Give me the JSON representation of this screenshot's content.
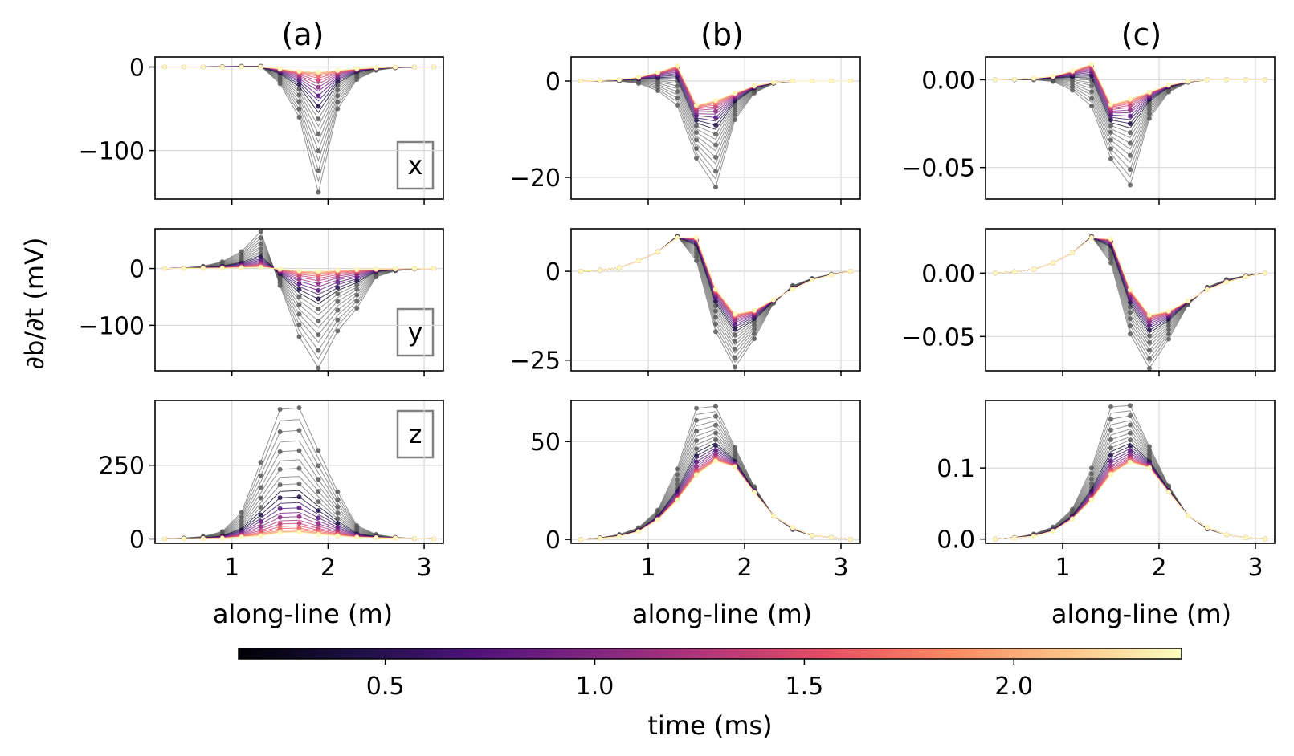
{
  "figure": {
    "ylabel": "∂b/∂t (mV)",
    "column_titles": [
      "(a)",
      "(b)",
      "(c)"
    ],
    "xlabel": "along-line (m)"
  },
  "colorbar": {
    "label": "time (ms)",
    "range": [
      0.15,
      2.4
    ],
    "ticks": [
      0.5,
      1.0,
      1.5,
      2.0
    ],
    "tick_labels": [
      "0.5",
      "1.0",
      "1.5",
      "2.0"
    ],
    "colormap": "magma",
    "colors": [
      "#000004",
      "#1c1044",
      "#4f127b",
      "#812581",
      "#b5367a",
      "#e55064",
      "#fb8761",
      "#fec287",
      "#fcfdbf"
    ]
  },
  "chart_data": [
    {
      "type": "line",
      "panel": "a-x",
      "component": "x",
      "x_range": [
        0.3,
        3.1
      ],
      "ylim": [
        -158,
        12
      ],
      "yticks": [
        0,
        -100
      ],
      "ytick_labels": [
        "0",
        "−100"
      ],
      "xticks": [
        1,
        2,
        3
      ],
      "xtick_labels": [
        "1",
        "2",
        "3"
      ],
      "early_peak": [
        [
          0.3,
          0
        ],
        [
          0.5,
          0
        ],
        [
          0.7,
          0
        ],
        [
          0.9,
          0.5
        ],
        [
          1.1,
          1
        ],
        [
          1.3,
          1
        ],
        [
          1.5,
          -20
        ],
        [
          1.7,
          -60
        ],
        [
          1.9,
          -150
        ],
        [
          2.1,
          -50
        ],
        [
          2.3,
          -15
        ],
        [
          2.5,
          -4
        ],
        [
          2.7,
          -1
        ],
        [
          2.9,
          0
        ],
        [
          3.1,
          0
        ]
      ],
      "late_peak": [
        [
          0.3,
          0
        ],
        [
          0.7,
          0
        ],
        [
          1.3,
          0
        ],
        [
          1.5,
          -2
        ],
        [
          1.7,
          -5
        ],
        [
          1.9,
          -6
        ],
        [
          2.1,
          -4
        ],
        [
          2.3,
          -2
        ],
        [
          2.7,
          0
        ],
        [
          3.1,
          0
        ]
      ]
    },
    {
      "type": "line",
      "panel": "b-x",
      "component": "x",
      "x_range": [
        0.3,
        3.1
      ],
      "ylim": [
        -24.5,
        5
      ],
      "yticks": [
        0,
        -20
      ],
      "ytick_labels": [
        "0",
        "−20"
      ],
      "xticks": [
        1,
        2,
        3
      ],
      "xtick_labels": [
        "1",
        "2",
        "3"
      ],
      "early_peak": [
        [
          0.3,
          0
        ],
        [
          0.5,
          0
        ],
        [
          0.7,
          0
        ],
        [
          0.9,
          -0.5
        ],
        [
          1.1,
          -2
        ],
        [
          1.3,
          -5
        ],
        [
          1.5,
          -16
        ],
        [
          1.6,
          -23
        ],
        [
          1.7,
          -22
        ],
        [
          1.9,
          -8
        ],
        [
          2.1,
          -2.5
        ],
        [
          2.3,
          -0.5
        ],
        [
          2.5,
          0
        ],
        [
          2.7,
          0
        ],
        [
          2.9,
          0
        ],
        [
          3.1,
          0
        ]
      ],
      "late_peak": [
        [
          0.3,
          0
        ],
        [
          0.5,
          0.1
        ],
        [
          0.7,
          0.3
        ],
        [
          0.9,
          0.8
        ],
        [
          1.1,
          1.8
        ],
        [
          1.3,
          3.2
        ],
        [
          1.5,
          -5
        ],
        [
          1.7,
          -4
        ],
        [
          1.9,
          -2.5
        ],
        [
          2.1,
          -1
        ],
        [
          2.3,
          -0.3
        ],
        [
          2.5,
          0
        ],
        [
          2.7,
          0
        ],
        [
          2.9,
          0
        ],
        [
          3.1,
          0
        ]
      ]
    },
    {
      "type": "line",
      "panel": "c-x",
      "component": "x",
      "x_range": [
        0.3,
        3.1
      ],
      "ylim": [
        -0.068,
        0.013
      ],
      "yticks": [
        0,
        -0.05
      ],
      "ytick_labels": [
        "0.00",
        "−0.05"
      ],
      "xticks": [
        1,
        2,
        3
      ],
      "xtick_labels": [
        "1",
        "2",
        "3"
      ],
      "early_peak": [
        [
          0.3,
          0
        ],
        [
          0.5,
          0
        ],
        [
          0.7,
          0
        ],
        [
          0.9,
          -0.001
        ],
        [
          1.1,
          -0.006
        ],
        [
          1.3,
          -0.015
        ],
        [
          1.5,
          -0.045
        ],
        [
          1.6,
          -0.063
        ],
        [
          1.7,
          -0.06
        ],
        [
          1.9,
          -0.022
        ],
        [
          2.1,
          -0.007
        ],
        [
          2.3,
          -0.0015
        ],
        [
          2.5,
          0
        ],
        [
          2.7,
          0
        ],
        [
          2.9,
          0
        ],
        [
          3.1,
          0
        ]
      ],
      "late_peak": [
        [
          0.3,
          0
        ],
        [
          0.5,
          0.0002
        ],
        [
          0.7,
          0.0008
        ],
        [
          0.9,
          0.002
        ],
        [
          1.1,
          0.005
        ],
        [
          1.3,
          0.009
        ],
        [
          1.5,
          -0.014
        ],
        [
          1.7,
          -0.011
        ],
        [
          1.9,
          -0.007
        ],
        [
          2.1,
          -0.003
        ],
        [
          2.3,
          -0.001
        ],
        [
          2.5,
          0
        ],
        [
          2.7,
          0
        ],
        [
          2.9,
          0
        ],
        [
          3.1,
          0
        ]
      ]
    },
    {
      "type": "line",
      "panel": "a-y",
      "component": "y",
      "x_range": [
        0.3,
        3.1
      ],
      "ylim": [
        -180,
        70
      ],
      "yticks": [
        0,
        -100
      ],
      "ytick_labels": [
        "0",
        "−100"
      ],
      "xticks": [
        1,
        2,
        3
      ],
      "xtick_labels": [
        "1",
        "2",
        "3"
      ],
      "early_peak": [
        [
          0.3,
          0
        ],
        [
          0.5,
          1
        ],
        [
          0.7,
          4
        ],
        [
          0.9,
          12
        ],
        [
          1.1,
          30
        ],
        [
          1.3,
          65
        ],
        [
          1.5,
          -30
        ],
        [
          1.7,
          -120
        ],
        [
          1.9,
          -175
        ],
        [
          2.1,
          -110
        ],
        [
          2.3,
          -70
        ],
        [
          2.5,
          -15
        ],
        [
          2.7,
          -4
        ],
        [
          2.9,
          -1
        ],
        [
          3.1,
          0
        ]
      ],
      "late_peak": [
        [
          0.3,
          0
        ],
        [
          0.9,
          0.5
        ],
        [
          1.3,
          2
        ],
        [
          1.5,
          -1
        ],
        [
          1.7,
          -4
        ],
        [
          1.9,
          -5
        ],
        [
          2.1,
          -3
        ],
        [
          2.5,
          -1
        ],
        [
          3.1,
          0
        ]
      ]
    },
    {
      "type": "line",
      "panel": "b-y",
      "component": "y",
      "x_range": [
        0.3,
        3.1
      ],
      "ylim": [
        -28,
        12
      ],
      "yticks": [
        0,
        -25
      ],
      "ytick_labels": [
        "0",
        "−25"
      ],
      "xticks": [
        1,
        2,
        3
      ],
      "xtick_labels": [
        "1",
        "2",
        "3"
      ],
      "early_peak": [
        [
          0.3,
          0
        ],
        [
          0.5,
          0.3
        ],
        [
          0.7,
          1
        ],
        [
          0.9,
          3
        ],
        [
          1.1,
          5.5
        ],
        [
          1.3,
          10
        ],
        [
          1.5,
          3
        ],
        [
          1.7,
          -17
        ],
        [
          1.9,
          -27
        ],
        [
          2.1,
          -19
        ],
        [
          2.3,
          -9
        ],
        [
          2.5,
          -4
        ],
        [
          2.7,
          -2
        ],
        [
          2.9,
          -0.8
        ],
        [
          3.1,
          0
        ]
      ],
      "late_peak": [
        [
          0.3,
          0
        ],
        [
          0.5,
          0.3
        ],
        [
          0.7,
          1
        ],
        [
          0.9,
          3
        ],
        [
          1.1,
          5.5
        ],
        [
          1.3,
          9.5
        ],
        [
          1.5,
          9.5
        ],
        [
          1.7,
          -5
        ],
        [
          1.9,
          -12
        ],
        [
          2.1,
          -11
        ],
        [
          2.3,
          -8
        ],
        [
          2.5,
          -5
        ],
        [
          2.7,
          -2.5
        ],
        [
          2.9,
          -1
        ],
        [
          3.1,
          0
        ]
      ]
    },
    {
      "type": "line",
      "panel": "c-y",
      "component": "y",
      "x_range": [
        0.3,
        3.1
      ],
      "ylim": [
        -0.077,
        0.035
      ],
      "yticks": [
        0,
        -0.05
      ],
      "ytick_labels": [
        "0.00",
        "−0.05"
      ],
      "xticks": [
        1,
        2,
        3
      ],
      "xtick_labels": [
        "1",
        "2",
        "3"
      ],
      "early_peak": [
        [
          0.3,
          0
        ],
        [
          0.5,
          0.001
        ],
        [
          0.7,
          0.003
        ],
        [
          0.9,
          0.008
        ],
        [
          1.1,
          0.016
        ],
        [
          1.3,
          0.029
        ],
        [
          1.5,
          0.008
        ],
        [
          1.7,
          -0.048
        ],
        [
          1.9,
          -0.075
        ],
        [
          2.1,
          -0.052
        ],
        [
          2.3,
          -0.025
        ],
        [
          2.5,
          -0.011
        ],
        [
          2.7,
          -0.005
        ],
        [
          2.9,
          -0.002
        ],
        [
          3.1,
          0
        ]
      ],
      "late_peak": [
        [
          0.3,
          0
        ],
        [
          0.5,
          0.001
        ],
        [
          0.7,
          0.003
        ],
        [
          0.9,
          0.008
        ],
        [
          1.1,
          0.016
        ],
        [
          1.3,
          0.028
        ],
        [
          1.5,
          0.027
        ],
        [
          1.7,
          -0.013
        ],
        [
          1.9,
          -0.033
        ],
        [
          2.1,
          -0.03
        ],
        [
          2.3,
          -0.022
        ],
        [
          2.5,
          -0.013
        ],
        [
          2.7,
          -0.007
        ],
        [
          2.9,
          -0.003
        ],
        [
          3.1,
          0
        ]
      ]
    },
    {
      "type": "line",
      "panel": "a-z",
      "component": "z",
      "x_range": [
        0.3,
        3.1
      ],
      "ylim": [
        -15,
        470
      ],
      "yticks": [
        250,
        0
      ],
      "ytick_labels": [
        "250",
        "0"
      ],
      "xticks": [
        1,
        2,
        3
      ],
      "xtick_labels": [
        "1",
        "2",
        "3"
      ],
      "early_peak": [
        [
          0.3,
          0
        ],
        [
          0.5,
          3
        ],
        [
          0.7,
          8
        ],
        [
          0.9,
          25
        ],
        [
          1.1,
          90
        ],
        [
          1.3,
          260
        ],
        [
          1.5,
          440
        ],
        [
          1.7,
          445
        ],
        [
          1.9,
          300
        ],
        [
          2.1,
          160
        ],
        [
          2.3,
          45
        ],
        [
          2.5,
          15
        ],
        [
          2.7,
          5
        ],
        [
          2.9,
          1
        ],
        [
          3.1,
          0
        ]
      ],
      "late_peak": [
        [
          0.3,
          0
        ],
        [
          0.9,
          2
        ],
        [
          1.3,
          10
        ],
        [
          1.5,
          20
        ],
        [
          1.7,
          22
        ],
        [
          1.9,
          15
        ],
        [
          2.3,
          5
        ],
        [
          3.1,
          0
        ]
      ]
    },
    {
      "type": "line",
      "panel": "b-z",
      "component": "z",
      "x_range": [
        0.3,
        3.1
      ],
      "ylim": [
        -2,
        71
      ],
      "yticks": [
        50,
        0
      ],
      "ytick_labels": [
        "50",
        "0"
      ],
      "xticks": [
        1,
        2,
        3
      ],
      "xtick_labels": [
        "1",
        "2",
        "3"
      ],
      "early_peak": [
        [
          0.3,
          0
        ],
        [
          0.5,
          0.8
        ],
        [
          0.7,
          2.5
        ],
        [
          0.9,
          6
        ],
        [
          1.1,
          15
        ],
        [
          1.3,
          36
        ],
        [
          1.5,
          67
        ],
        [
          1.7,
          68
        ],
        [
          1.9,
          47
        ],
        [
          2.1,
          27
        ],
        [
          2.3,
          12
        ],
        [
          2.5,
          5
        ],
        [
          2.7,
          2
        ],
        [
          2.9,
          1
        ],
        [
          3.1,
          0
        ]
      ],
      "late_peak": [
        [
          0.3,
          0
        ],
        [
          0.5,
          0.5
        ],
        [
          0.7,
          1.5
        ],
        [
          0.9,
          4
        ],
        [
          1.1,
          10
        ],
        [
          1.3,
          20
        ],
        [
          1.5,
          33
        ],
        [
          1.7,
          40
        ],
        [
          1.9,
          37
        ],
        [
          2.1,
          24
        ],
        [
          2.3,
          12
        ],
        [
          2.5,
          6
        ],
        [
          2.7,
          2
        ],
        [
          2.9,
          1
        ],
        [
          3.1,
          0
        ]
      ]
    },
    {
      "type": "line",
      "panel": "c-z",
      "component": "z",
      "x_range": [
        0.3,
        3.1
      ],
      "ylim": [
        -0.006,
        0.195
      ],
      "yticks": [
        0.1,
        0
      ],
      "ytick_labels": [
        "0.1",
        "0.0"
      ],
      "xticks": [
        1,
        2,
        3
      ],
      "xtick_labels": [
        "1",
        "2",
        "3"
      ],
      "early_peak": [
        [
          0.3,
          0
        ],
        [
          0.5,
          0.002
        ],
        [
          0.7,
          0.007
        ],
        [
          0.9,
          0.017
        ],
        [
          1.1,
          0.042
        ],
        [
          1.3,
          0.1
        ],
        [
          1.5,
          0.186
        ],
        [
          1.7,
          0.188
        ],
        [
          1.9,
          0.13
        ],
        [
          2.1,
          0.075
        ],
        [
          2.3,
          0.033
        ],
        [
          2.5,
          0.014
        ],
        [
          2.7,
          0.006
        ],
        [
          2.9,
          0.002
        ],
        [
          3.1,
          0
        ]
      ],
      "late_peak": [
        [
          0.3,
          0
        ],
        [
          0.5,
          0.0015
        ],
        [
          0.7,
          0.004
        ],
        [
          0.9,
          0.011
        ],
        [
          1.1,
          0.028
        ],
        [
          1.3,
          0.055
        ],
        [
          1.5,
          0.091
        ],
        [
          1.7,
          0.108
        ],
        [
          1.9,
          0.1
        ],
        [
          2.1,
          0.066
        ],
        [
          2.3,
          0.033
        ],
        [
          2.5,
          0.016
        ],
        [
          2.7,
          0.006
        ],
        [
          2.9,
          0.002
        ],
        [
          3.1,
          0
        ]
      ]
    }
  ]
}
